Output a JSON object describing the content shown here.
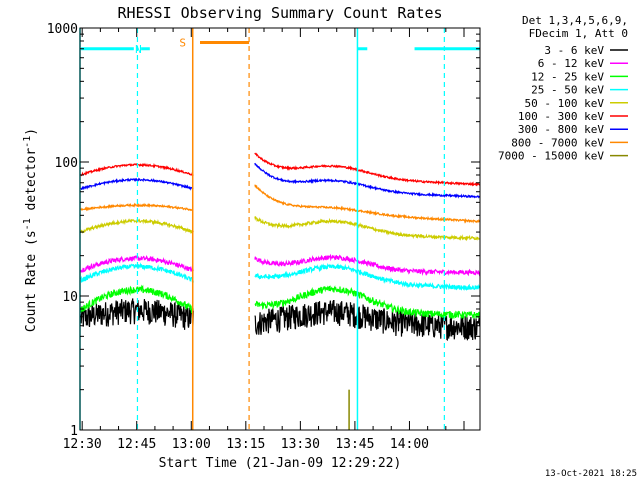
{
  "chart_data": {
    "type": "line",
    "title": "RHESSI Observing Summary Count Rates",
    "xlabel": "Start Time (21-Jan-09 12:29:22)",
    "ylabel_main": "Count Rate (s",
    "ylabel_sup1": "-1",
    "ylabel_mid": " detector",
    "ylabel_sup2": "-1",
    "ylabel_end": ")",
    "y_scale": "log",
    "ylim": [
      1,
      1000
    ],
    "y_ticks": [
      "1",
      "10",
      "100",
      "1000"
    ],
    "x_range_minutes": [
      0,
      110
    ],
    "x_ticks": [
      {
        "label": "12:30",
        "minutes": 0.6
      },
      {
        "label": "12:45",
        "minutes": 15.6
      },
      {
        "label": "13:00",
        "minutes": 30.6
      },
      {
        "label": "13:15",
        "minutes": 45.6
      },
      {
        "label": "13:30",
        "minutes": 60.6
      },
      {
        "label": "13:45",
        "minutes": 75.6
      },
      {
        "label": "14:00",
        "minutes": 90.6
      }
    ],
    "legend": {
      "placement": "right",
      "header_line1": "Det 1,3,4,5,6,9,",
      "header_line2": "FDecim 1, Att 0"
    },
    "series": [
      {
        "name": "3 - 6 keV",
        "color": "#000000",
        "start": 6.8,
        "peak": 8.0,
        "end": 5.9,
        "gap_start": 6.2,
        "noise": 0.1
      },
      {
        "name": "6 - 12 keV",
        "color": "#ff00ff",
        "start": 15.5,
        "peak": 19.5,
        "end": 15.0,
        "gap_start": 19.0,
        "noise": 0.04
      },
      {
        "name": "12 - 25 keV",
        "color": "#00ff00",
        "start": 7.8,
        "peak": 11.5,
        "end": 7.2,
        "gap_start": 8.5,
        "noise": 0.06
      },
      {
        "name": "25 - 50 keV",
        "color": "#00ffff",
        "start": 13.0,
        "peak": 17.0,
        "end": 11.5,
        "gap_start": 14.0,
        "noise": 0.04
      },
      {
        "name": "50 - 100 keV",
        "color": "#cccc00",
        "start": 30.0,
        "peak": 37.0,
        "end": 27.0,
        "gap_start": 38.0,
        "noise": 0.025
      },
      {
        "name": "100 - 300 keV",
        "color": "#ff0000",
        "start": 80.0,
        "peak": 97.0,
        "end": 68.0,
        "gap_start": 115.0,
        "noise": 0.015
      },
      {
        "name": "300 - 800 keV",
        "color": "#0000ff",
        "start": 63.0,
        "peak": 75.0,
        "end": 55.0,
        "gap_start": 97.0,
        "noise": 0.015
      },
      {
        "name": "800 - 7000 keV",
        "color": "#ff8800",
        "start": 44.0,
        "peak": 48.0,
        "end": 36.0,
        "gap_start": 67.0,
        "noise": 0.015
      },
      {
        "name": "7000 - 15000 keV",
        "color": "#888800",
        "start": null,
        "peak": null,
        "end": null,
        "gap_start": null,
        "noise": 0
      }
    ],
    "gap_minutes": [
      31.2,
      48.1
    ],
    "flags": [
      {
        "label": "N",
        "color": "#00ffff",
        "start": 0,
        "end": 76.3,
        "bar_level": 700,
        "bar_segments": [
          [
            0.3,
            14.8
          ],
          [
            16.8,
            19.2
          ]
        ],
        "dashed_at": [
          15.8
        ]
      },
      {
        "label": "S",
        "color": "#ff8800",
        "start": 31.0,
        "end": 46.5,
        "bar_level": 780,
        "bar_segments": [
          [
            33.0,
            46.5
          ]
        ],
        "dashed_at": [
          46.5
        ]
      },
      {
        "label": "",
        "color": "#00ffff",
        "start": 76.3,
        "end": 110,
        "bar_level": 700,
        "bar_segments": [
          [
            76.3,
            79.0
          ],
          [
            92.0,
            110
          ]
        ],
        "dashed_at": [
          100.2
        ]
      }
    ],
    "spike": {
      "series_color": "#888800",
      "minutes": 74.0,
      "peak": 2.0
    }
  },
  "footer": {
    "timestamp": "13-Oct-2021 18:25"
  }
}
